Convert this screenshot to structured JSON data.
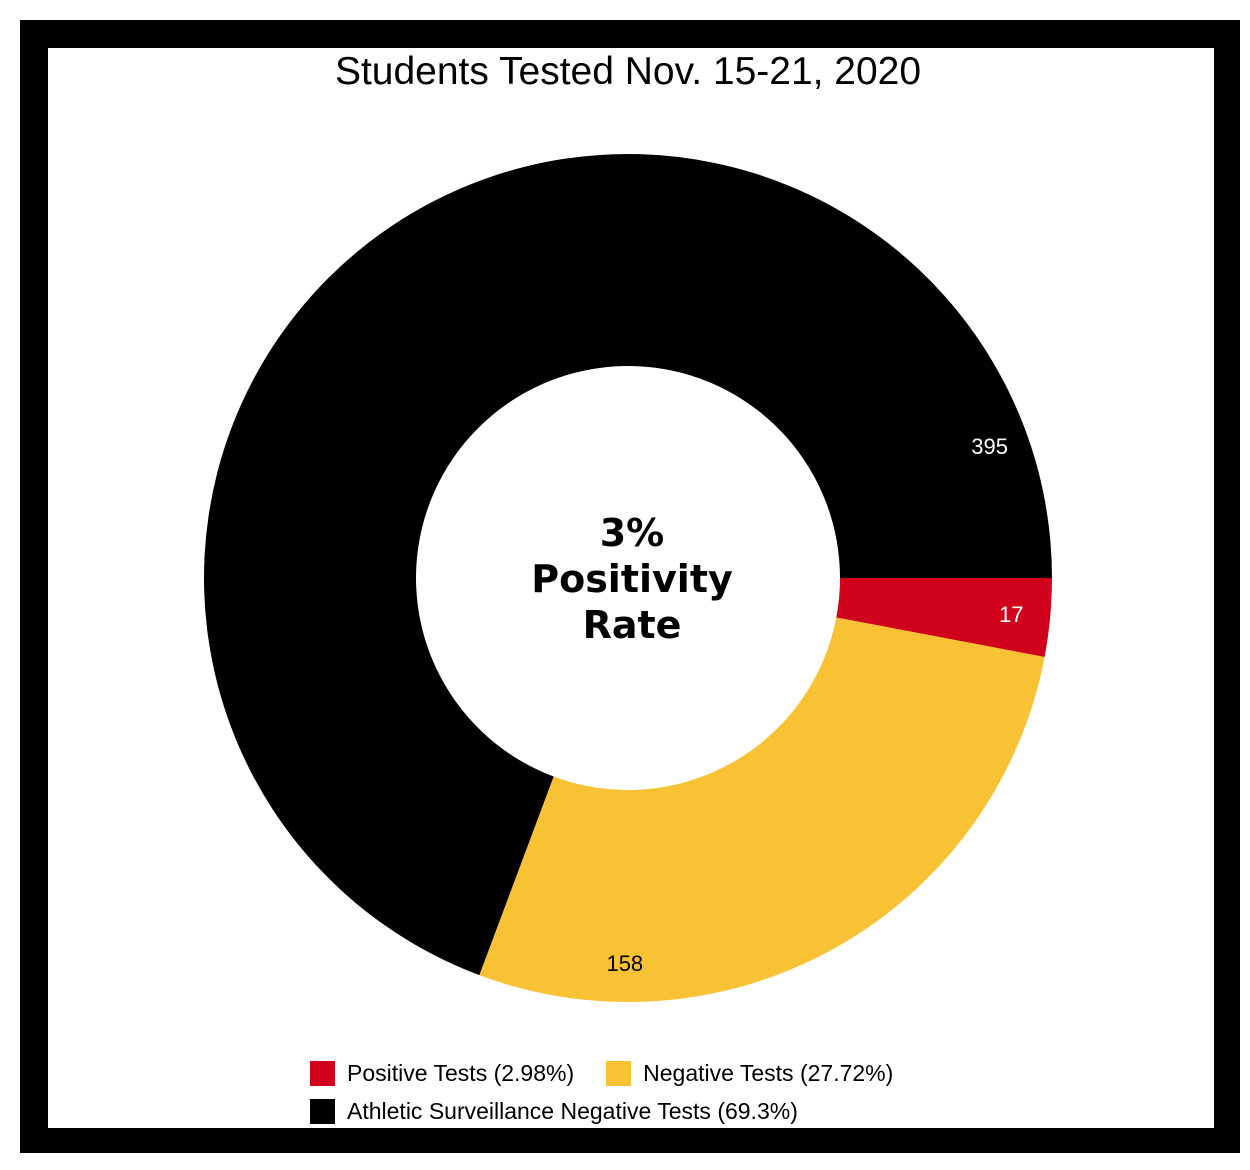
{
  "chart_data": {
    "type": "pie",
    "variant": "donut",
    "title": "Students Tested Nov. 15-21, 2020",
    "center_text": [
      "3%",
      "Positivity",
      "Rate"
    ],
    "slices": [
      {
        "name": "Positive Tests",
        "value": 17,
        "legend_label": "Positive Tests (2.98%)",
        "color": "#D0021B",
        "label_color": "#ffffff"
      },
      {
        "name": "Negative Tests",
        "value": 158,
        "legend_label": "Negative Tests (27.72%)",
        "color": "#F8C234",
        "label_color": "#000000"
      },
      {
        "name": "Athletic Surveillance Negative Tests",
        "value": 395,
        "legend_label": "Athletic Surveillance Negative Tests (69.3%)",
        "color": "#000000",
        "label_color": "#ffffff"
      }
    ],
    "start_angle": "3 o'clock, clockwise",
    "legend_position": "bottom"
  }
}
